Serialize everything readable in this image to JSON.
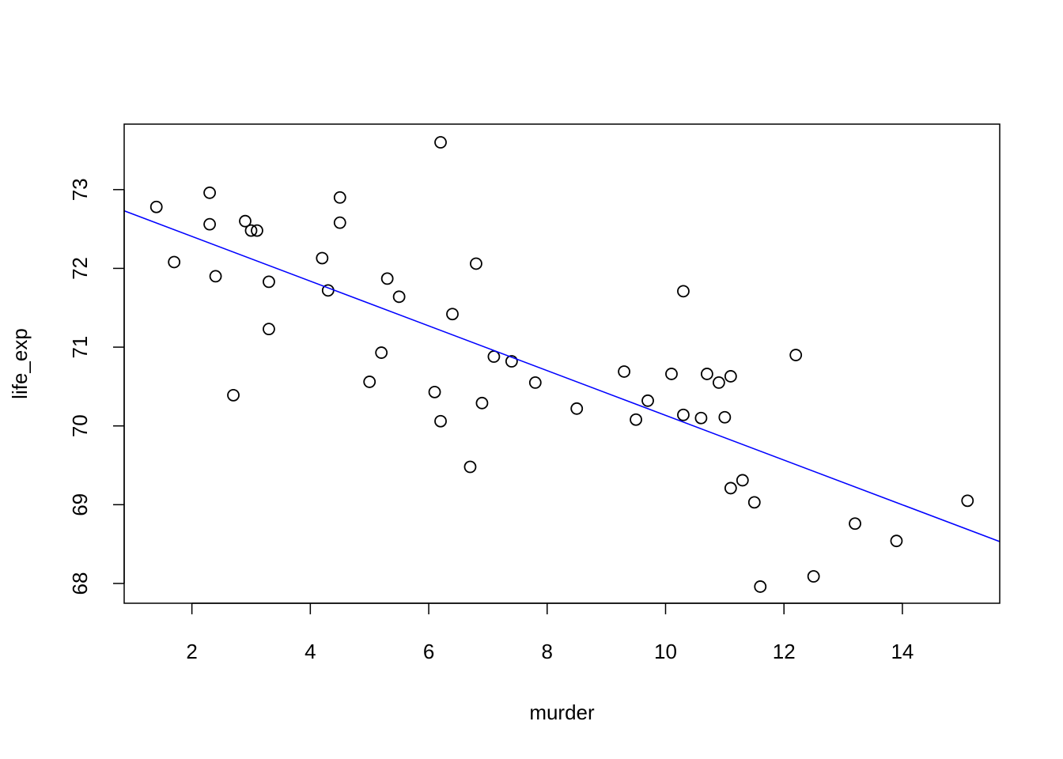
{
  "chart_data": {
    "type": "scatter",
    "xlabel": "murder",
    "ylabel": "life_exp",
    "xlim": [
      0.856,
      15.644
    ],
    "ylim": [
      67.7488,
      73.8312
    ],
    "x_ticks": [
      2,
      4,
      6,
      8,
      10,
      12,
      14
    ],
    "y_ticks": [
      68,
      69,
      70,
      71,
      72,
      73
    ],
    "grid": false,
    "points": [
      {
        "x": 1.4,
        "y": 72.78
      },
      {
        "x": 1.7,
        "y": 72.08
      },
      {
        "x": 2.3,
        "y": 72.96
      },
      {
        "x": 2.3,
        "y": 72.56
      },
      {
        "x": 2.4,
        "y": 71.9
      },
      {
        "x": 2.7,
        "y": 70.39
      },
      {
        "x": 2.9,
        "y": 72.6
      },
      {
        "x": 3.0,
        "y": 72.48
      },
      {
        "x": 3.1,
        "y": 72.48
      },
      {
        "x": 3.3,
        "y": 71.83
      },
      {
        "x": 3.3,
        "y": 71.23
      },
      {
        "x": 4.2,
        "y": 72.13
      },
      {
        "x": 4.3,
        "y": 71.72
      },
      {
        "x": 4.5,
        "y": 72.9
      },
      {
        "x": 4.5,
        "y": 72.58
      },
      {
        "x": 5.0,
        "y": 70.56
      },
      {
        "x": 5.2,
        "y": 70.93
      },
      {
        "x": 5.3,
        "y": 71.87
      },
      {
        "x": 5.5,
        "y": 71.64
      },
      {
        "x": 6.1,
        "y": 70.43
      },
      {
        "x": 6.2,
        "y": 73.6
      },
      {
        "x": 6.2,
        "y": 70.06
      },
      {
        "x": 6.4,
        "y": 71.42
      },
      {
        "x": 6.7,
        "y": 69.48
      },
      {
        "x": 6.8,
        "y": 72.06
      },
      {
        "x": 6.9,
        "y": 70.29
      },
      {
        "x": 7.1,
        "y": 70.88
      },
      {
        "x": 7.4,
        "y": 70.82
      },
      {
        "x": 7.8,
        "y": 70.55
      },
      {
        "x": 8.5,
        "y": 70.22
      },
      {
        "x": 9.3,
        "y": 70.69
      },
      {
        "x": 9.5,
        "y": 70.08
      },
      {
        "x": 9.7,
        "y": 70.32
      },
      {
        "x": 10.1,
        "y": 70.66
      },
      {
        "x": 10.3,
        "y": 71.71
      },
      {
        "x": 10.3,
        "y": 70.14
      },
      {
        "x": 10.6,
        "y": 70.1
      },
      {
        "x": 10.7,
        "y": 70.66
      },
      {
        "x": 10.9,
        "y": 70.55
      },
      {
        "x": 11.0,
        "y": 70.11
      },
      {
        "x": 11.1,
        "y": 70.63
      },
      {
        "x": 11.1,
        "y": 69.21
      },
      {
        "x": 11.3,
        "y": 69.31
      },
      {
        "x": 11.5,
        "y": 69.03
      },
      {
        "x": 11.6,
        "y": 67.96
      },
      {
        "x": 12.2,
        "y": 70.9
      },
      {
        "x": 12.5,
        "y": 68.09
      },
      {
        "x": 13.2,
        "y": 68.76
      },
      {
        "x": 13.9,
        "y": 68.54
      },
      {
        "x": 15.1,
        "y": 69.05
      }
    ],
    "fit_line": {
      "color": "#0000ff",
      "intercept": 72.9736,
      "slope": -0.28395
    },
    "colors": {
      "points": "#000000",
      "axes": "#000000",
      "fit": "#0000ff"
    }
  }
}
